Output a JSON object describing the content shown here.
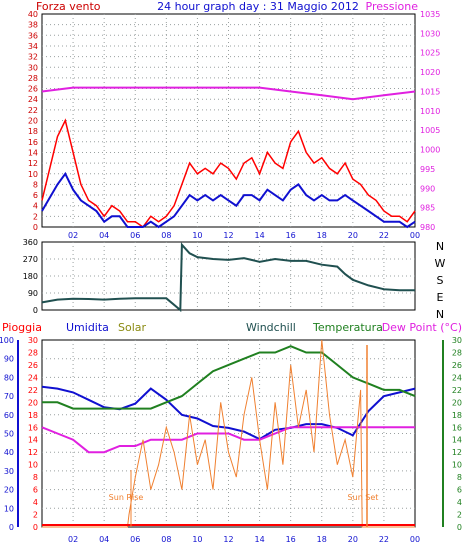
{
  "header": {
    "left_label": "Forza vento",
    "title": "24 hour graph day : 31 Maggio 2012",
    "right_label": "Pressione"
  },
  "colors": {
    "red": "#ff0000",
    "blue": "#1010d0",
    "magenta": "#e020e0",
    "olive": "#8a8a10",
    "teal": "#205050",
    "green": "#208020",
    "orange": "#f08030",
    "grid": "#9aa0a0"
  },
  "bottom_labels": {
    "pioggia": "Pioggia",
    "umidita": "Umidita",
    "solar": "Solar",
    "windchill": "Windchill",
    "temperatura": "Temperatura",
    "dewpoint": "Dew Point (°C)",
    "sunrise": "Sun Rise",
    "sunset": "Sun Set"
  },
  "chart_data": [
    {
      "type": "line",
      "x_ticks": [
        "02",
        "04",
        "06",
        "08",
        "10",
        "12",
        "14",
        "16",
        "18",
        "20",
        "22",
        "00"
      ],
      "left_axis": {
        "ticks": [
          "0",
          "2",
          "4",
          "6",
          "8",
          "10",
          "12",
          "14",
          "16",
          "18",
          "20",
          "22",
          "24",
          "26",
          "28",
          "30",
          "32",
          "34",
          "36",
          "38",
          "40"
        ],
        "ylim": [
          0,
          40
        ]
      },
      "right_axis": {
        "ticks": [
          "980",
          "985",
          "990",
          "995",
          "1000",
          "1005",
          "1010",
          "1015",
          "1020",
          "1025",
          "1030",
          "1035"
        ],
        "ylim": [
          980,
          1035
        ]
      },
      "grid": true,
      "series": [
        {
          "axis": "left",
          "color": "red",
          "x": [
            0,
            1,
            1.5,
            2,
            2.5,
            3,
            3.5,
            4,
            4.5,
            5,
            5.5,
            6,
            6.5,
            7,
            7.5,
            8,
            8.5,
            9,
            9.5,
            10,
            10.5,
            11,
            11.5,
            12,
            12.5,
            13,
            13.5,
            14,
            14.5,
            15,
            15.5,
            16,
            16.5,
            17,
            17.5,
            18,
            18.5,
            19,
            19.5,
            20,
            20.5,
            21,
            21.5,
            22,
            22.5,
            23,
            23.5,
            24
          ],
          "values": [
            5,
            17,
            20,
            14,
            8,
            5,
            4,
            2,
            4,
            3,
            1,
            1,
            0,
            2,
            1,
            2,
            4,
            8,
            12,
            10,
            11,
            10,
            12,
            11,
            9,
            12,
            13,
            10,
            14,
            12,
            11,
            16,
            18,
            14,
            12,
            13,
            11,
            10,
            12,
            9,
            8,
            6,
            5,
            3,
            2,
            2,
            1,
            3
          ]
        },
        {
          "axis": "left",
          "color": "blue",
          "x": [
            0,
            1,
            1.5,
            2,
            2.5,
            3,
            3.5,
            4,
            4.5,
            5,
            5.5,
            6,
            6.5,
            7,
            7.5,
            8,
            8.5,
            9,
            9.5,
            10,
            10.5,
            11,
            11.5,
            12,
            12.5,
            13,
            13.5,
            14,
            14.5,
            15,
            15.5,
            16,
            16.5,
            17,
            17.5,
            18,
            18.5,
            19,
            19.5,
            20,
            20.5,
            21,
            21.5,
            22,
            22.5,
            23,
            23.5,
            24
          ],
          "values": [
            3,
            8,
            10,
            7,
            5,
            4,
            3,
            1,
            2,
            2,
            0,
            0,
            0,
            1,
            0,
            1,
            2,
            4,
            6,
            5,
            6,
            5,
            6,
            5,
            4,
            6,
            6,
            5,
            7,
            6,
            5,
            7,
            8,
            6,
            5,
            6,
            5,
            5,
            6,
            5,
            4,
            3,
            2,
            1,
            1,
            1,
            0,
            1
          ]
        },
        {
          "axis": "right",
          "color": "magenta",
          "x": [
            0,
            2,
            4,
            6,
            8,
            10,
            12,
            14,
            16,
            18,
            20,
            22,
            24
          ],
          "values": [
            1015,
            1016,
            1016,
            1016,
            1016,
            1016,
            1016,
            1016,
            1015,
            1014,
            1013,
            1014,
            1015
          ]
        }
      ]
    },
    {
      "type": "line",
      "x_ticks": [
        "02",
        "04",
        "06",
        "08",
        "10",
        "12",
        "14",
        "16",
        "18",
        "20",
        "22",
        "00"
      ],
      "left_axis": {
        "ticks": [
          "0",
          "90",
          "180",
          "270",
          "360"
        ],
        "ylim": [
          0,
          360
        ]
      },
      "right_labels": [
        "N",
        "W",
        "S",
        "E",
        "N"
      ],
      "grid": true,
      "series": [
        {
          "color": "teal",
          "x": [
            0,
            1,
            2,
            3,
            4,
            5,
            6,
            7,
            8,
            8.9,
            9,
            9.5,
            10,
            11,
            12,
            13,
            14,
            15,
            16,
            17,
            18,
            19,
            19.5,
            20,
            21,
            22,
            23,
            24
          ],
          "values": [
            40,
            55,
            60,
            58,
            55,
            60,
            62,
            62,
            62,
            0,
            345,
            300,
            280,
            270,
            265,
            275,
            255,
            270,
            260,
            260,
            240,
            230,
            190,
            160,
            130,
            110,
            105,
            105
          ]
        }
      ]
    },
    {
      "type": "line",
      "x_ticks": [
        "02",
        "04",
        "06",
        "08",
        "10",
        "12",
        "14",
        "16",
        "18",
        "20",
        "22",
        "00"
      ],
      "humidity_axis": {
        "ticks": [
          "0",
          "10",
          "20",
          "30",
          "40",
          "50",
          "60",
          "70",
          "80",
          "90",
          "100"
        ],
        "ylim": [
          0,
          100
        ]
      },
      "rain_axis": {
        "ticks": [
          "0",
          "2",
          "4",
          "6",
          "8",
          "10",
          "12",
          "14",
          "16",
          "18",
          "20",
          "22",
          "24",
          "26",
          "28",
          "30"
        ],
        "ylim": [
          0,
          30
        ]
      },
      "temperature_axis": {
        "ticks": [
          "0",
          "2",
          "4",
          "6",
          "8",
          "10",
          "12",
          "14",
          "16",
          "18",
          "20",
          "22",
          "24",
          "26",
          "28",
          "30"
        ],
        "ylim": [
          0,
          30
        ]
      },
      "grid": true,
      "series": [
        {
          "name": "Umidita",
          "axis": "humidity",
          "color": "blue",
          "x": [
            0,
            1,
            2,
            3,
            4,
            5,
            6,
            7,
            8,
            9,
            10,
            11,
            12,
            13,
            14,
            15,
            16,
            17,
            18,
            19,
            20,
            21,
            22,
            23,
            24
          ],
          "values": [
            75,
            74,
            72,
            68,
            64,
            63,
            66,
            74,
            68,
            60,
            58,
            54,
            53,
            51,
            47,
            52,
            53,
            55,
            55,
            53,
            49,
            62,
            70,
            72,
            74
          ]
        },
        {
          "name": "Temperatura",
          "axis": "temperature",
          "color": "green",
          "x": [
            0,
            1,
            2,
            3,
            4,
            5,
            6,
            7,
            8,
            9,
            10,
            11,
            12,
            13,
            14,
            15,
            16,
            17,
            18,
            19,
            20,
            21,
            22,
            23,
            24
          ],
          "values": [
            20,
            20,
            19,
            19,
            19,
            19,
            19,
            19,
            20,
            21,
            23,
            25,
            26,
            27,
            28,
            28,
            29,
            28,
            28,
            26,
            24,
            23,
            22,
            22,
            21
          ]
        },
        {
          "name": "Dew Point (°C)",
          "axis": "temperature",
          "color": "magenta",
          "x": [
            0,
            1,
            2,
            3,
            4,
            5,
            6,
            7,
            8,
            9,
            10,
            11,
            12,
            13,
            14,
            15,
            16,
            17,
            18,
            19,
            20,
            21,
            22,
            23,
            24
          ],
          "values": [
            16,
            15,
            14,
            12,
            12,
            13,
            13,
            14,
            14,
            14,
            15,
            15,
            15,
            14,
            14,
            15,
            16,
            16,
            16,
            16,
            16,
            16,
            16,
            16,
            16
          ]
        },
        {
          "name": "Solar",
          "axis": "rain",
          "color": "orange",
          "x": [
            0,
            5.5,
            5.6,
            6,
            6.5,
            7,
            7.5,
            8,
            8.5,
            9,
            9.5,
            10,
            10.5,
            11,
            11.5,
            12,
            12.5,
            13,
            13.5,
            14,
            14.5,
            15,
            15.5,
            16,
            16.5,
            17,
            17.5,
            18,
            18.5,
            19,
            19.5,
            20,
            20.5,
            20.6,
            24
          ],
          "values": [
            0,
            0,
            2,
            8,
            14,
            6,
            10,
            16,
            12,
            6,
            18,
            10,
            14,
            6,
            20,
            12,
            8,
            18,
            24,
            14,
            6,
            20,
            10,
            26,
            16,
            22,
            12,
            30,
            18,
            10,
            14,
            8,
            22,
            0,
            0
          ]
        }
      ]
    }
  ]
}
